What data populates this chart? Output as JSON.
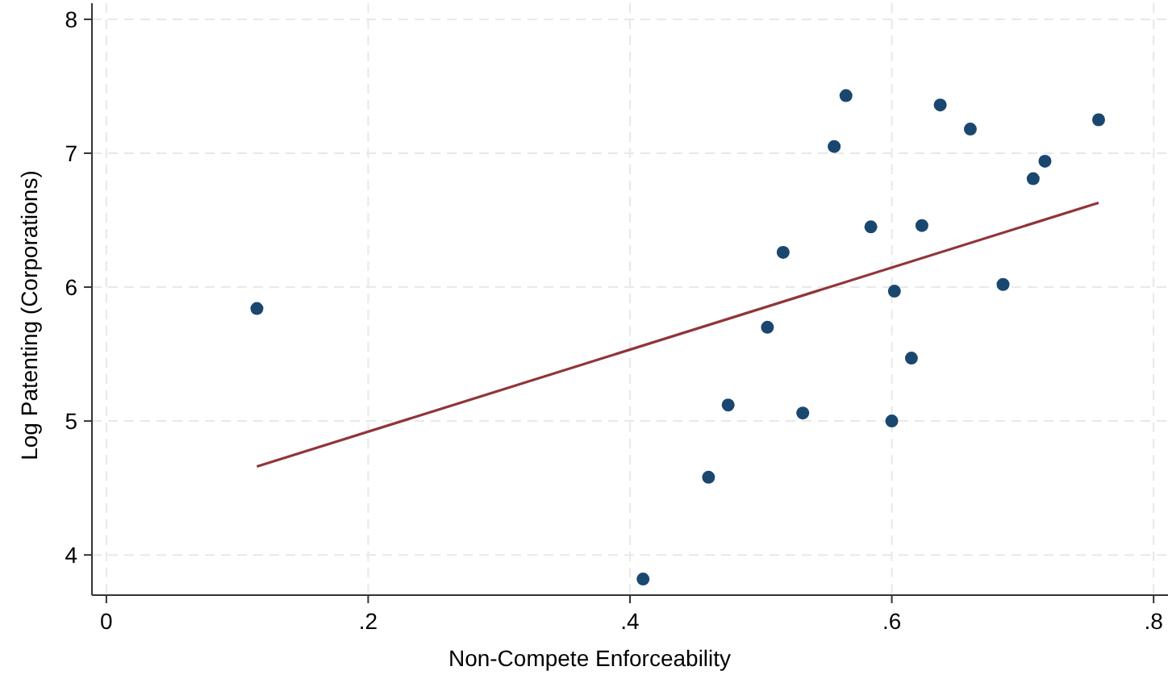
{
  "chart_data": {
    "type": "scatter",
    "xlabel": "Non-Compete Enforceability",
    "ylabel": "Log Patenting (Corporations)",
    "xlim": [
      -0.011,
      0.811
    ],
    "ylim": [
      3.7,
      8.12
    ],
    "xticks": [
      {
        "value": 0,
        "label": "0"
      },
      {
        "value": 0.2,
        "label": ".2"
      },
      {
        "value": 0.4,
        "label": ".4"
      },
      {
        "value": 0.6,
        "label": ".6"
      },
      {
        "value": 0.8,
        "label": ".8"
      }
    ],
    "yticks": [
      4,
      5,
      6,
      7,
      8
    ],
    "grid": true,
    "series": [
      {
        "color": "#1a476f",
        "marker": "circle",
        "x": [
          0.115,
          0.41,
          0.46,
          0.475,
          0.505,
          0.517,
          0.532,
          0.556,
          0.565,
          0.584,
          0.6,
          0.602,
          0.615,
          0.623,
          0.637,
          0.66,
          0.685,
          0.708,
          0.717,
          0.758
        ],
        "values": [
          5.84,
          3.82,
          4.58,
          5.12,
          5.7,
          6.26,
          5.06,
          7.05,
          7.43,
          6.45,
          5.0,
          5.97,
          5.47,
          6.46,
          7.36,
          7.18,
          6.02,
          6.81,
          6.94,
          7.25
        ]
      },
      {
        "type": "line",
        "color": "#90353b",
        "marker": "none",
        "x": [
          0.115,
          0.758
        ],
        "values": [
          4.66,
          6.63
        ]
      }
    ]
  }
}
